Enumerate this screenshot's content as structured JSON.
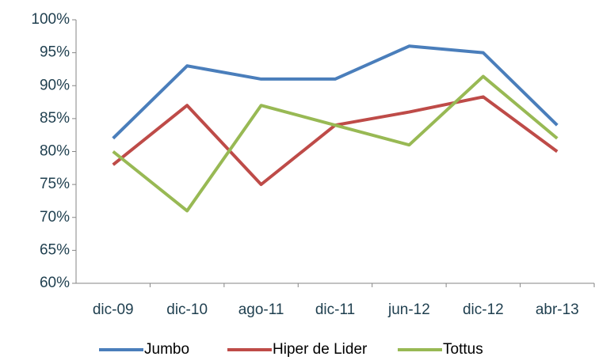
{
  "chart_data": {
    "type": "line",
    "categories": [
      "dic-09",
      "dic-10",
      "ago-11",
      "dic-11",
      "jun-12",
      "dic-12",
      "abr-13"
    ],
    "series": [
      {
        "name": "Jumbo",
        "color": "#4a7ebb",
        "values": [
          82,
          93,
          91,
          91,
          96,
          95,
          84
        ]
      },
      {
        "name": "Hiper de Lider",
        "color": "#be4b48",
        "values": [
          78,
          87,
          75,
          84,
          86,
          88.3,
          80
        ]
      },
      {
        "name": "Tottus",
        "color": "#98b954",
        "values": [
          80,
          71,
          87,
          84,
          81,
          91.4,
          82
        ]
      }
    ],
    "ylim": [
      60,
      100
    ],
    "yticks": [
      {
        "value": 60,
        "label": "60%"
      },
      {
        "value": 65,
        "label": "65%"
      },
      {
        "value": 70,
        "label": "70%"
      },
      {
        "value": 75,
        "label": "75%"
      },
      {
        "value": 80,
        "label": "80%"
      },
      {
        "value": 85,
        "label": "85%"
      },
      {
        "value": 90,
        "label": "90%"
      },
      {
        "value": 95,
        "label": "95%"
      },
      {
        "value": 100,
        "label": "100%"
      }
    ],
    "grid": false,
    "legend": "bottom"
  }
}
